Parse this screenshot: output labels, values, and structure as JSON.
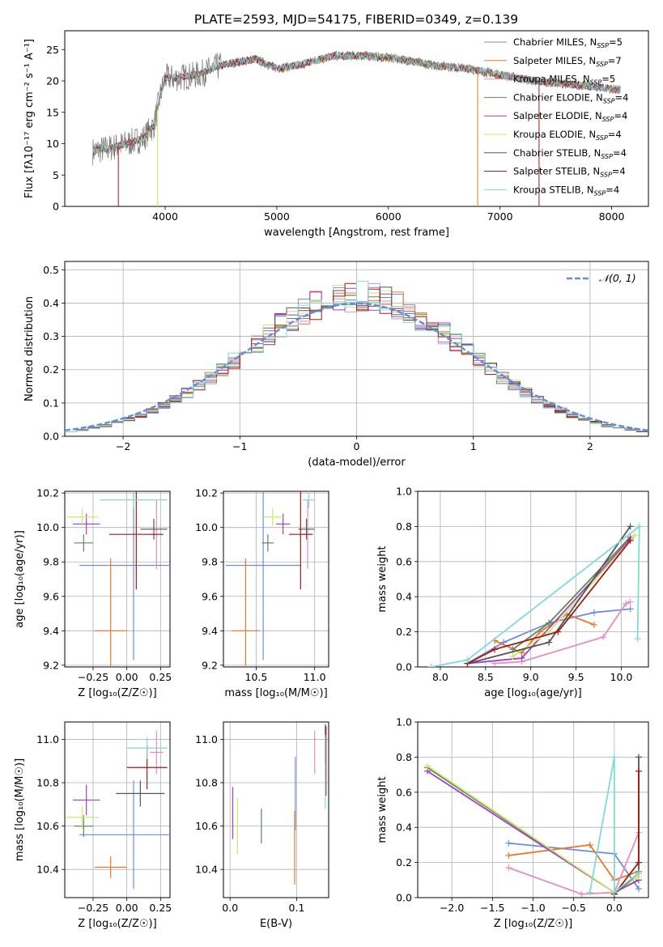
{
  "figure": {
    "title": "PLATE=2593, MJD=54175, FIBERID=0349, z=0.139"
  },
  "colors": {
    "chabrier_miles": "#6b8fdc",
    "salpeter_miles": "#e8792a",
    "kroupa_miles": "#e48ec1",
    "chabrier_elodie": "#5a8a5a",
    "salpeter_elodie": "#a23fc7",
    "kroupa_elodie": "#cfe86a",
    "chabrier_stelib": "#555555",
    "salpeter_stelib": "#a11a1a",
    "kroupa_stelib": "#7fdada",
    "grid": "#b0b0b0",
    "gauss": "#5f8fdc",
    "spectrum": "#777777"
  },
  "legend": [
    {
      "name": "Chabrier MILES, N",
      "sub": "SSP",
      "tail": "=5",
      "color_key": "chabrier_miles"
    },
    {
      "name": "Salpeter MILES, N",
      "sub": "SSP",
      "tail": "=7",
      "color_key": "salpeter_miles"
    },
    {
      "name": "Kroupa MILES, N",
      "sub": "SSP",
      "tail": "=5",
      "color_key": "kroupa_miles"
    },
    {
      "name": "Chabrier ELODIE, N",
      "sub": "SSP",
      "tail": "=4",
      "color_key": "chabrier_elodie"
    },
    {
      "name": "Salpeter ELODIE, N",
      "sub": "SSP",
      "tail": "=4",
      "color_key": "salpeter_elodie"
    },
    {
      "name": "Kroupa ELODIE, N",
      "sub": "SSP",
      "tail": "=4",
      "color_key": "kroupa_elodie"
    },
    {
      "name": "Chabrier STELIB, N",
      "sub": "SSP",
      "tail": "=4",
      "color_key": "chabrier_stelib"
    },
    {
      "name": "Salpeter STELIB, N",
      "sub": "SSP",
      "tail": "=4",
      "color_key": "salpeter_stelib"
    },
    {
      "name": "Kroupa STELIB, N",
      "sub": "SSP",
      "tail": "=4",
      "color_key": "kroupa_stelib"
    }
  ],
  "chart_data": [
    {
      "id": "spectrum",
      "type": "line",
      "xlabel": "wavelength [Angstrom, rest frame]",
      "ylabel": "Flux [fλ10⁻¹⁷ erg cm⁻² s⁻¹ A⁻¹]",
      "xlim": [
        3100,
        8330
      ],
      "ylim": [
        0,
        28
      ],
      "xticks": [
        4000,
        5000,
        6000,
        7000,
        8000
      ],
      "yticks": [
        0,
        5,
        10,
        15,
        20,
        25
      ],
      "continuum_knots": [
        [
          3350,
          8.8
        ],
        [
          3500,
          9.3
        ],
        [
          3650,
          10.0
        ],
        [
          3800,
          10.8
        ],
        [
          3900,
          13.0
        ],
        [
          3960,
          18.0
        ],
        [
          4000,
          20.5
        ],
        [
          4100,
          20.5
        ],
        [
          4300,
          21.0
        ],
        [
          4500,
          22.5
        ],
        [
          4800,
          23.5
        ],
        [
          5000,
          22.0
        ],
        [
          5200,
          22.5
        ],
        [
          5500,
          24.0
        ],
        [
          5800,
          24.0
        ],
        [
          6100,
          23.5
        ],
        [
          6400,
          22.5
        ],
        [
          6700,
          22.0
        ],
        [
          7000,
          21.0
        ],
        [
          7300,
          20.0
        ],
        [
          7600,
          19.5
        ],
        [
          7900,
          19.0
        ],
        [
          8080,
          18.5
        ]
      ],
      "dips": [
        [
          3580,
          0
        ],
        [
          3930,
          0
        ],
        [
          6800,
          0
        ],
        [
          7350,
          0
        ]
      ]
    },
    {
      "id": "residuals",
      "type": "step",
      "xlabel": "(data-model)/error",
      "ylabel": "Normed distribution",
      "xlim": [
        -2.5,
        2.5
      ],
      "ylim": [
        0,
        0.525
      ],
      "xticks": [
        -2,
        -1,
        0,
        1,
        2
      ],
      "yticks": [
        0.0,
        0.1,
        0.2,
        0.3,
        0.4,
        0.5
      ],
      "gauss_label": "𝒩(0, 1)",
      "bin_width": 0.1
    },
    {
      "id": "age_vs_Z",
      "type": "errorbar",
      "xlabel": "Z [log₁₀(Z/Z☉)]",
      "ylabel": "age  [log₁₀(age/yr)]",
      "xlim": [
        -0.46,
        0.32
      ],
      "ylim": [
        9.19,
        10.21
      ],
      "xticks": [
        -0.25,
        0.0,
        0.25
      ],
      "xticklabels": [
        "−0.25",
        "0.00",
        "0.25"
      ],
      "yticks": [
        9.2,
        9.4,
        9.6,
        9.8,
        10.0,
        10.2
      ],
      "points": [
        {
          "k": "chabrier_miles",
          "x": 0.05,
          "xe": 0.4,
          "y": 9.78,
          "ye": 0.55
        },
        {
          "k": "salpeter_miles",
          "x": -0.12,
          "xe": 0.12,
          "y": 9.4,
          "ye": 0.42
        },
        {
          "k": "kroupa_miles",
          "x": 0.22,
          "xe": 0.05,
          "y": 9.96,
          "ye": 0.2
        },
        {
          "k": "chabrier_elodie",
          "x": -0.32,
          "xe": 0.07,
          "y": 9.91,
          "ye": 0.05
        },
        {
          "k": "salpeter_elodie",
          "x": -0.3,
          "xe": 0.1,
          "y": 10.02,
          "ye": 0.06
        },
        {
          "k": "kroupa_elodie",
          "x": -0.33,
          "xe": 0.12,
          "y": 10.06,
          "ye": 0.05
        },
        {
          "k": "chabrier_stelib",
          "x": 0.2,
          "xe": 0.1,
          "y": 9.99,
          "ye": 0.06
        },
        {
          "k": "salpeter_stelib",
          "x": 0.07,
          "xe": 0.2,
          "y": 9.96,
          "ye": 0.32
        },
        {
          "k": "kroupa_stelib",
          "x": 0.05,
          "xe": 0.25,
          "y": 10.16,
          "ye": 0.05
        }
      ]
    },
    {
      "id": "age_vs_mass",
      "type": "errorbar",
      "xlabel": "mass [log₁₀(M/M☉)]",
      "ylabel": "",
      "xlim": [
        10.22,
        11.12
      ],
      "ylim": [
        9.19,
        10.21
      ],
      "xticks": [
        10.5,
        11.0
      ],
      "xticklabels": [
        "10.5",
        "11.0"
      ],
      "yticks": [
        9.2,
        9.4,
        9.6,
        9.8,
        10.0,
        10.2
      ],
      "points": [
        {
          "k": "chabrier_miles",
          "x": 10.56,
          "xe": 0.32,
          "y": 9.78,
          "ye": 0.55
        },
        {
          "k": "salpeter_miles",
          "x": 10.41,
          "xe": 0.12,
          "y": 9.4,
          "ye": 0.42
        },
        {
          "k": "kroupa_miles",
          "x": 10.94,
          "xe": 0.05,
          "y": 9.96,
          "ye": 0.2
        },
        {
          "k": "chabrier_elodie",
          "x": 10.6,
          "xe": 0.05,
          "y": 9.91,
          "ye": 0.05
        },
        {
          "k": "salpeter_elodie",
          "x": 10.73,
          "xe": 0.06,
          "y": 10.02,
          "ye": 0.06
        },
        {
          "k": "kroupa_elodie",
          "x": 10.64,
          "xe": 0.08,
          "y": 10.06,
          "ye": 0.05
        },
        {
          "k": "chabrier_stelib",
          "x": 10.93,
          "xe": 0.07,
          "y": 9.99,
          "ye": 0.06
        },
        {
          "k": "salpeter_stelib",
          "x": 10.88,
          "xe": 0.1,
          "y": 9.96,
          "ye": 0.32
        },
        {
          "k": "kroupa_stelib",
          "x": 10.95,
          "xe": 0.05,
          "y": 10.16,
          "ye": 0.05
        }
      ]
    },
    {
      "id": "weight_vs_age",
      "type": "line",
      "xlabel": "age  [log₁₀(age/yr)]",
      "ylabel": "mass weight",
      "xlim": [
        7.75,
        10.3
      ],
      "ylim": [
        0,
        1.0
      ],
      "xticks": [
        8.0,
        8.5,
        9.0,
        9.5,
        10.0
      ],
      "xticklabels": [
        "8.0",
        "8.5",
        "9.0",
        "9.5",
        "10.0"
      ],
      "yticks": [
        0.0,
        0.2,
        0.4,
        0.6,
        0.8,
        1.0
      ],
      "series": [
        {
          "k": "chabrier_miles",
          "pts": [
            [
              8.3,
              0.02
            ],
            [
              8.7,
              0.14
            ],
            [
              9.2,
              0.25
            ],
            [
              9.7,
              0.31
            ],
            [
              10.1,
              0.33
            ]
          ]
        },
        {
          "k": "salpeter_miles",
          "pts": [
            [
              8.6,
              0.15
            ],
            [
              8.9,
              0.08
            ],
            [
              9.1,
              0.2
            ],
            [
              9.4,
              0.3
            ],
            [
              9.7,
              0.24
            ]
          ]
        },
        {
          "k": "kroupa_miles",
          "pts": [
            [
              8.6,
              0.02
            ],
            [
              8.9,
              0.03
            ],
            [
              9.8,
              0.17
            ],
            [
              10.05,
              0.36
            ],
            [
              10.1,
              0.37
            ]
          ]
        },
        {
          "k": "chabrier_elodie",
          "pts": [
            [
              8.8,
              0.1
            ],
            [
              9.2,
              0.25
            ],
            [
              10.1,
              0.74
            ]
          ]
        },
        {
          "k": "salpeter_elodie",
          "pts": [
            [
              8.3,
              0.02
            ],
            [
              8.9,
              0.05
            ],
            [
              10.1,
              0.73
            ]
          ]
        },
        {
          "k": "kroupa_elodie",
          "pts": [
            [
              8.8,
              0.06
            ],
            [
              9.2,
              0.2
            ],
            [
              10.15,
              0.75
            ]
          ]
        },
        {
          "k": "chabrier_stelib",
          "pts": [
            [
              8.3,
              0.02
            ],
            [
              9.2,
              0.14
            ],
            [
              10.1,
              0.8
            ]
          ]
        },
        {
          "k": "salpeter_stelib",
          "pts": [
            [
              8.3,
              0.02
            ],
            [
              8.6,
              0.1
            ],
            [
              9.3,
              0.2
            ],
            [
              10.1,
              0.72
            ]
          ]
        },
        {
          "k": "kroupa_stelib",
          "pts": [
            [
              7.9,
              0.0
            ],
            [
              8.3,
              0.04
            ],
            [
              10.2,
              0.8
            ],
            [
              10.18,
              0.16
            ]
          ]
        }
      ]
    },
    {
      "id": "mass_vs_Z",
      "type": "errorbar",
      "xlabel": "Z [log₁₀(Z/Z☉)]",
      "ylabel": "mass [log₁₀(M/M☉)]",
      "xlim": [
        -0.46,
        0.32
      ],
      "ylim": [
        10.27,
        11.08
      ],
      "xticks": [
        -0.25,
        0.0,
        0.25
      ],
      "xticklabels": [
        "−0.25",
        "0.00",
        "0.25"
      ],
      "yticks": [
        10.4,
        10.6,
        10.8,
        11.0
      ],
      "points": [
        {
          "k": "chabrier_miles",
          "x": 0.05,
          "xe": 0.4,
          "y": 10.56,
          "ye": 0.25
        },
        {
          "k": "salpeter_miles",
          "x": -0.12,
          "xe": 0.12,
          "y": 10.41,
          "ye": 0.05
        },
        {
          "k": "kroupa_miles",
          "x": 0.22,
          "xe": 0.05,
          "y": 10.94,
          "ye": 0.1
        },
        {
          "k": "chabrier_elodie",
          "x": -0.32,
          "xe": 0.07,
          "y": 10.6,
          "ye": 0.05
        },
        {
          "k": "salpeter_elodie",
          "x": -0.3,
          "xe": 0.1,
          "y": 10.72,
          "ye": 0.07
        },
        {
          "k": "kroupa_elodie",
          "x": -0.33,
          "xe": 0.12,
          "y": 10.64,
          "ye": 0.05
        },
        {
          "k": "chabrier_stelib",
          "x": 0.1,
          "xe": 0.18,
          "y": 10.75,
          "ye": 0.06
        },
        {
          "k": "salpeter_stelib",
          "x": 0.15,
          "xe": 0.15,
          "y": 10.87,
          "ye": 0.1
        },
        {
          "k": "kroupa_stelib",
          "x": 0.15,
          "xe": 0.15,
          "y": 10.96,
          "ye": 0.05
        }
      ]
    },
    {
      "id": "mass_vs_ebv",
      "type": "errorbar",
      "xlabel": "E(B-V)",
      "ylabel": "",
      "xlim": [
        -0.01,
        0.148
      ],
      "ylim": [
        10.27,
        11.08
      ],
      "xticks": [
        0.0,
        0.1
      ],
      "xticklabels": [
        "0.0",
        "0.1"
      ],
      "yticks": [
        10.4,
        10.6,
        10.8,
        11.0
      ],
      "points": [
        {
          "k": "chabrier_miles",
          "x": 0.098,
          "xe": 0,
          "y": 10.75,
          "ye": 0.17
        },
        {
          "k": "salpeter_miles",
          "x": 0.097,
          "xe": 0,
          "y": 10.5,
          "ye": 0.17
        },
        {
          "k": "kroupa_miles",
          "x": 0.127,
          "xe": 0,
          "y": 10.94,
          "ye": 0.1
        },
        {
          "k": "chabrier_elodie",
          "x": 0.047,
          "xe": 0,
          "y": 10.6,
          "ye": 0.08
        },
        {
          "k": "salpeter_elodie",
          "x": 0.004,
          "xe": 0,
          "y": 10.66,
          "ye": 0.12
        },
        {
          "k": "kroupa_elodie",
          "x": 0.011,
          "xe": 0,
          "y": 10.6,
          "ye": 0.13
        },
        {
          "k": "chabrier_stelib",
          "x": 0.143,
          "xe": 0,
          "y": 10.98,
          "ye": 0.09
        },
        {
          "k": "salpeter_stelib",
          "x": 0.144,
          "xe": 0,
          "y": 10.9,
          "ye": 0.16
        },
        {
          "k": "kroupa_stelib",
          "x": 0.143,
          "xe": 0,
          "y": 10.85,
          "ye": 0.17
        }
      ]
    },
    {
      "id": "weight_vs_Z",
      "type": "line",
      "xlabel": "Z [log₁₀(Z/Z☉)]",
      "ylabel": "mass weight",
      "xlim": [
        -2.42,
        0.42
      ],
      "ylim": [
        0,
        1.0
      ],
      "xticks": [
        -2.0,
        -1.5,
        -1.0,
        -0.5,
        0.0
      ],
      "xticklabels": [
        "−2.0",
        "−1.5",
        "−1.0",
        "−0.5",
        "0.0"
      ],
      "yticks": [
        0.0,
        0.2,
        0.4,
        0.6,
        0.8,
        1.0
      ],
      "series": [
        {
          "k": "chabrier_miles",
          "pts": [
            [
              -1.3,
              0.31
            ],
            [
              0.0,
              0.25
            ],
            [
              0.3,
              0.05
            ]
          ]
        },
        {
          "k": "salpeter_miles",
          "pts": [
            [
              -1.3,
              0.24
            ],
            [
              -0.3,
              0.3
            ],
            [
              0.0,
              0.1
            ],
            [
              0.3,
              0.15
            ]
          ]
        },
        {
          "k": "kroupa_miles",
          "pts": [
            [
              -1.3,
              0.17
            ],
            [
              -0.4,
              0.02
            ],
            [
              0.0,
              0.03
            ],
            [
              0.3,
              0.37
            ]
          ]
        },
        {
          "k": "chabrier_elodie",
          "pts": [
            [
              -2.3,
              0.74
            ],
            [
              0.0,
              0.03
            ],
            [
              0.3,
              0.1
            ]
          ]
        },
        {
          "k": "salpeter_elodie",
          "pts": [
            [
              -2.3,
              0.72
            ],
            [
              0.0,
              0.03
            ],
            [
              0.3,
              0.1
            ]
          ]
        },
        {
          "k": "kroupa_elodie",
          "pts": [
            [
              -2.3,
              0.75
            ],
            [
              0.0,
              0.03
            ],
            [
              0.3,
              0.12
            ]
          ]
        },
        {
          "k": "chabrier_stelib",
          "pts": [
            [
              0.0,
              0.02
            ],
            [
              0.3,
              0.14
            ],
            [
              0.3,
              0.8
            ]
          ]
        },
        {
          "k": "salpeter_stelib",
          "pts": [
            [
              0.0,
              0.02
            ],
            [
              0.3,
              0.2
            ],
            [
              0.3,
              0.72
            ]
          ]
        },
        {
          "k": "kroupa_stelib",
          "pts": [
            [
              -0.3,
              0.03
            ],
            [
              0.0,
              0.8
            ],
            [
              0.0,
              0.03
            ],
            [
              0.3,
              0.14
            ]
          ]
        }
      ]
    }
  ]
}
